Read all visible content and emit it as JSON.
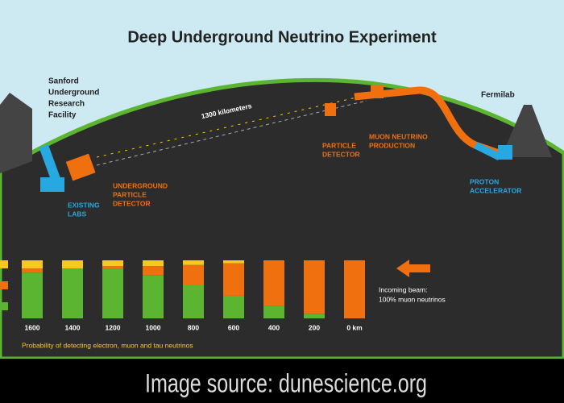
{
  "title": "Deep Underground Neutrino Experiment",
  "labels": {
    "sanford": [
      "Sanford",
      "Underground",
      "Research",
      "Facility"
    ],
    "fermilab": "Fermilab",
    "distance": "1300 kilometers",
    "particle_detector": [
      "PARTICLE",
      "DETECTOR"
    ],
    "muon_production": [
      "MUON NEUTRINO",
      "PRODUCTION"
    ],
    "underground_detector": [
      "UNDERGROUND",
      "PARTICLE",
      "DETECTOR"
    ],
    "existing_labs": [
      "EXISTING",
      "LABS"
    ],
    "proton_accelerator": [
      "PROTON",
      "ACCELERATOR"
    ],
    "incoming_beam": [
      "Incoming beam:",
      "100% muon neutrinos"
    ]
  },
  "chart": {
    "type": "bar",
    "stacked": true,
    "categories": [
      "1600",
      "1400",
      "1200",
      "1000",
      "800",
      "600",
      "400",
      "200",
      "0 km"
    ],
    "series": [
      {
        "color": "#5cb531",
        "values": [
          79,
          86,
          86,
          74,
          57,
          39,
          21,
          8,
          0
        ]
      },
      {
        "color": "#f0700f",
        "values": [
          7,
          0,
          4,
          16,
          35,
          56,
          79,
          92,
          100
        ]
      },
      {
        "color": "#f8c81c",
        "values": [
          14,
          14,
          10,
          10,
          8,
          5,
          0,
          0,
          0
        ]
      }
    ],
    "ylim": [
      0,
      100
    ],
    "caption": "Probability of detecting electron, muon and tau neutrinos"
  },
  "footer": "Image source: dunescience.org"
}
